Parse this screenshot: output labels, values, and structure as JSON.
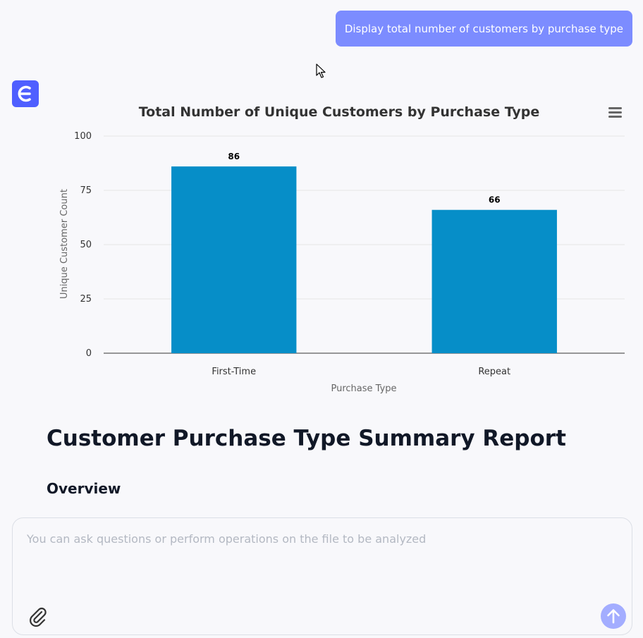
{
  "chat": {
    "user_message": "Display total number of customers by purchase type"
  },
  "chart_data": {
    "type": "bar",
    "title": "Total Number of Unique Customers by Purchase Type",
    "xlabel": "Purchase Type",
    "ylabel": "Unique Customer Count",
    "categories": [
      "First-Time",
      "Repeat"
    ],
    "values": [
      86,
      66
    ],
    "ylim": [
      0,
      100
    ],
    "yticks": [
      0,
      25,
      50,
      75,
      100
    ],
    "data_labels": true,
    "grid": true,
    "legend": "none",
    "bar_color": "#068ec8"
  },
  "report": {
    "title": "Customer Purchase Type Summary Report",
    "section": "Overview"
  },
  "composer": {
    "placeholder": "You can ask questions or perform operations on the file to be analyzed"
  },
  "icons": {
    "avatar": "app-logo-icon",
    "menu": "hamburger-menu-icon",
    "attach": "paperclip-icon",
    "send": "arrow-up-icon"
  },
  "colors": {
    "user_bubble": "#7c8cff",
    "avatar": "#4f5fff",
    "send_button": "#a3adff",
    "bar": "#068ec8"
  }
}
